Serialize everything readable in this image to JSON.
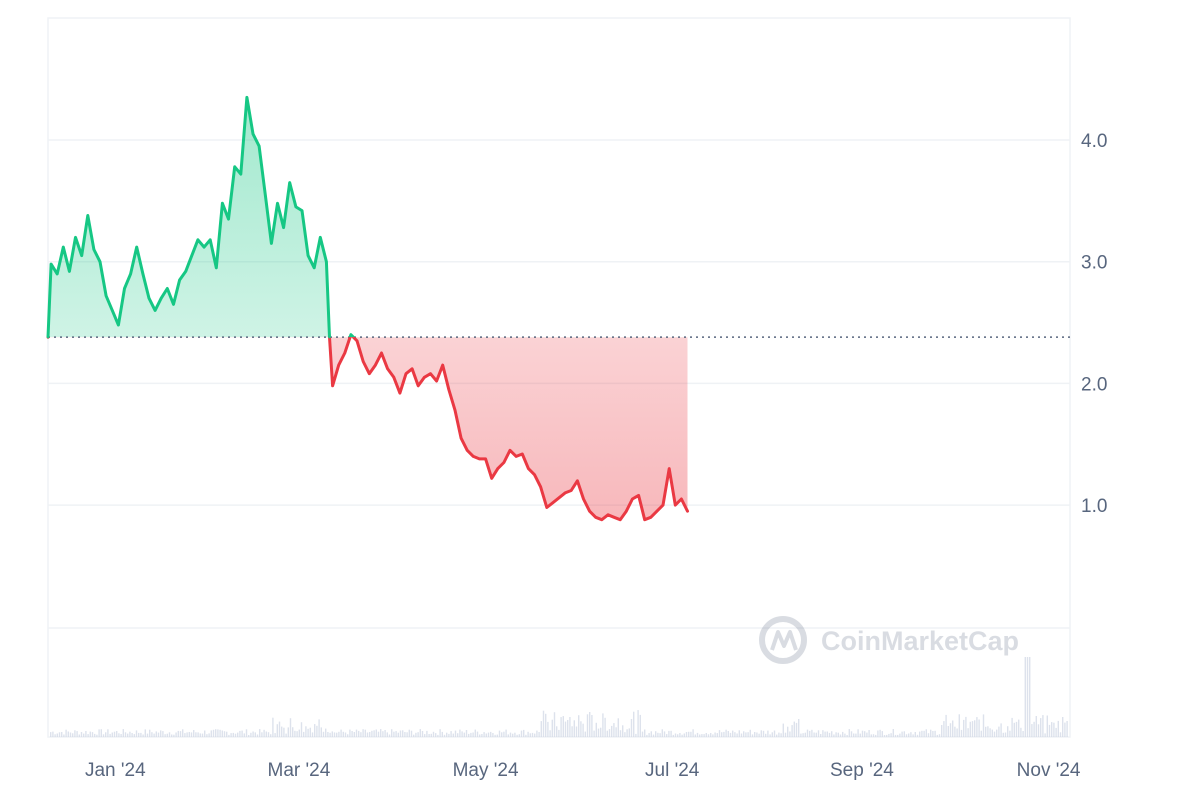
{
  "chart_data": {
    "type": "area",
    "title": "",
    "xlabel": "",
    "ylabel": "",
    "x_ticks": [
      "Jan '24",
      "Mar '24",
      "May '24",
      "Jul '24",
      "Sep '24",
      "Nov '24"
    ],
    "x_range": [
      "2023-12-10",
      "2024-11-08"
    ],
    "y_ticks": [
      "1.0",
      "2.0",
      "3.0",
      "4.0"
    ],
    "y_range": [
      0,
      5
    ],
    "y_axis_side": "right",
    "grid": true,
    "baseline": 2.38,
    "up_color": "#16c784",
    "down_color": "#ea3943",
    "watermark": "CoinMarketCap",
    "series": [
      {
        "values": [
          [
            "2023-12-10",
            2.38
          ],
          [
            "2023-12-11",
            2.98
          ],
          [
            "2023-12-13",
            2.9
          ],
          [
            "2023-12-15",
            3.12
          ],
          [
            "2023-12-17",
            2.92
          ],
          [
            "2023-12-19",
            3.2
          ],
          [
            "2023-12-21",
            3.05
          ],
          [
            "2023-12-23",
            3.38
          ],
          [
            "2023-12-25",
            3.1
          ],
          [
            "2023-12-27",
            3.0
          ],
          [
            "2023-12-29",
            2.72
          ],
          [
            "2023-12-31",
            2.6
          ],
          [
            "2024-01-02",
            2.48
          ],
          [
            "2024-01-04",
            2.78
          ],
          [
            "2024-01-06",
            2.9
          ],
          [
            "2024-01-08",
            3.12
          ],
          [
            "2024-01-10",
            2.9
          ],
          [
            "2024-01-12",
            2.7
          ],
          [
            "2024-01-14",
            2.6
          ],
          [
            "2024-01-16",
            2.7
          ],
          [
            "2024-01-18",
            2.78
          ],
          [
            "2024-01-20",
            2.65
          ],
          [
            "2024-01-22",
            2.85
          ],
          [
            "2024-01-24",
            2.92
          ],
          [
            "2024-01-26",
            3.05
          ],
          [
            "2024-01-28",
            3.18
          ],
          [
            "2024-01-30",
            3.12
          ],
          [
            "2024-02-01",
            3.18
          ],
          [
            "2024-02-03",
            2.95
          ],
          [
            "2024-02-05",
            3.48
          ],
          [
            "2024-02-07",
            3.35
          ],
          [
            "2024-02-09",
            3.78
          ],
          [
            "2024-02-11",
            3.72
          ],
          [
            "2024-02-13",
            4.35
          ],
          [
            "2024-02-15",
            4.05
          ],
          [
            "2024-02-17",
            3.95
          ],
          [
            "2024-02-19",
            3.55
          ],
          [
            "2024-02-21",
            3.15
          ],
          [
            "2024-02-23",
            3.48
          ],
          [
            "2024-02-25",
            3.28
          ],
          [
            "2024-02-27",
            3.65
          ],
          [
            "2024-02-29",
            3.45
          ],
          [
            "2024-03-02",
            3.42
          ],
          [
            "2024-03-04",
            3.05
          ],
          [
            "2024-03-06",
            2.95
          ],
          [
            "2024-03-08",
            3.2
          ],
          [
            "2024-03-10",
            3.0
          ],
          [
            "2024-03-11",
            2.38
          ],
          [
            "2024-03-12",
            1.98
          ],
          [
            "2024-03-14",
            2.15
          ],
          [
            "2024-03-16",
            2.25
          ],
          [
            "2024-03-18",
            2.4
          ],
          [
            "2024-03-20",
            2.35
          ],
          [
            "2024-03-22",
            2.18
          ],
          [
            "2024-03-24",
            2.08
          ],
          [
            "2024-03-26",
            2.15
          ],
          [
            "2024-03-28",
            2.25
          ],
          [
            "2024-03-30",
            2.12
          ],
          [
            "2024-04-01",
            2.05
          ],
          [
            "2024-04-03",
            1.92
          ],
          [
            "2024-04-05",
            2.08
          ],
          [
            "2024-04-07",
            2.12
          ],
          [
            "2024-04-09",
            1.98
          ],
          [
            "2024-04-11",
            2.05
          ],
          [
            "2024-04-13",
            2.08
          ],
          [
            "2024-04-15",
            2.02
          ],
          [
            "2024-04-17",
            2.15
          ],
          [
            "2024-04-19",
            1.95
          ],
          [
            "2024-04-21",
            1.78
          ],
          [
            "2024-04-23",
            1.55
          ],
          [
            "2024-04-25",
            1.45
          ],
          [
            "2024-04-27",
            1.4
          ],
          [
            "2024-04-29",
            1.38
          ],
          [
            "2024-05-01",
            1.38
          ],
          [
            "2024-05-03",
            1.22
          ],
          [
            "2024-05-05",
            1.3
          ],
          [
            "2024-05-07",
            1.35
          ],
          [
            "2024-05-09",
            1.45
          ],
          [
            "2024-05-11",
            1.4
          ],
          [
            "2024-05-13",
            1.42
          ],
          [
            "2024-05-15",
            1.3
          ],
          [
            "2024-05-17",
            1.25
          ],
          [
            "2024-05-19",
            1.15
          ],
          [
            "2024-05-21",
            0.98
          ],
          [
            "2024-05-23",
            1.02
          ],
          [
            "2024-05-25",
            1.06
          ],
          [
            "2024-05-27",
            1.1
          ],
          [
            "2024-05-29",
            1.12
          ],
          [
            "2024-05-31",
            1.2
          ],
          [
            "2024-06-02",
            1.05
          ],
          [
            "2024-06-04",
            0.95
          ],
          [
            "2024-06-06",
            0.9
          ],
          [
            "2024-06-08",
            0.88
          ],
          [
            "2024-06-10",
            0.92
          ],
          [
            "2024-06-12",
            0.9
          ],
          [
            "2024-06-14",
            0.88
          ],
          [
            "2024-06-16",
            0.95
          ],
          [
            "2024-06-18",
            1.05
          ],
          [
            "2024-06-20",
            1.08
          ],
          [
            "2024-06-22",
            0.88
          ],
          [
            "2024-06-24",
            0.9
          ],
          [
            "2024-06-26",
            0.95
          ],
          [
            "2024-06-28",
            1.0
          ],
          [
            "2024-06-30",
            1.3
          ],
          [
            "2024-07-02",
            1.0
          ],
          [
            "2024-07-04",
            1.05
          ],
          [
            "2024-07-06",
            0.95
          ]
        ]
      }
    ]
  }
}
